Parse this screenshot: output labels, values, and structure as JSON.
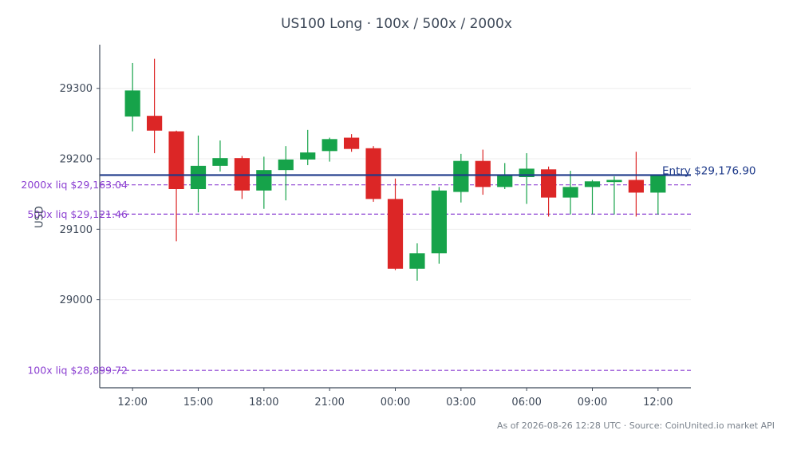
{
  "title": "US100 Long · 100x / 500x / 2000x",
  "footer": "As of 2026-08-26 12:28 UTC · Source: CoinUnited.io market API",
  "colors": {
    "up": "#16a34a",
    "down": "#dc2626",
    "entry": "#1e3a8a",
    "liq": "#8b3fd1",
    "axis": "#3f4a5a",
    "grid": "#eeeeee"
  },
  "chart_data": {
    "type": "candlestick",
    "title": "US100 Long · 100x / 500x / 2000x",
    "ylabel": "USD",
    "xlabel": "",
    "ylim": [
      28875,
      29362
    ],
    "xlim": [
      -1.5,
      25.5
    ],
    "grid": true,
    "y_ticks": [
      29000,
      29100,
      29200,
      29300
    ],
    "y_tick_labels": [
      "29000",
      "29100",
      "29200",
      "29300"
    ],
    "x_ticks": [
      0,
      3,
      6,
      9,
      12,
      15,
      18,
      21,
      24
    ],
    "x_tick_labels": [
      "12:00",
      "15:00",
      "18:00",
      "21:00",
      "00:00",
      "03:00",
      "06:00",
      "09:00",
      "12:00"
    ],
    "candles": [
      {
        "open": 29260,
        "close": 29297,
        "high": 29336,
        "low": 29239
      },
      {
        "open": 29261,
        "close": 29240,
        "high": 29342,
        "low": 29208
      },
      {
        "open": 29239,
        "close": 29157,
        "high": 29240,
        "low": 29083
      },
      {
        "open": 29157,
        "close": 29190,
        "high": 29233,
        "low": 29124
      },
      {
        "open": 29190,
        "close": 29201,
        "high": 29226,
        "low": 29182
      },
      {
        "open": 29201,
        "close": 29155,
        "high": 29204,
        "low": 29143
      },
      {
        "open": 29155,
        "close": 29184,
        "high": 29203,
        "low": 29129
      },
      {
        "open": 29184,
        "close": 29199,
        "high": 29218,
        "low": 29141
      },
      {
        "open": 29199,
        "close": 29209,
        "high": 29241,
        "low": 29191
      },
      {
        "open": 29211,
        "close": 29228,
        "high": 29230,
        "low": 29196
      },
      {
        "open": 29230,
        "close": 29214,
        "high": 29235,
        "low": 29210
      },
      {
        "open": 29215,
        "close": 29143,
        "high": 29218,
        "low": 29139
      },
      {
        "open": 29143,
        "close": 29044,
        "high": 29172,
        "low": 29042
      },
      {
        "open": 29044,
        "close": 29066,
        "high": 29080,
        "low": 29027
      },
      {
        "open": 29066,
        "close": 29155,
        "high": 29160,
        "low": 29051
      },
      {
        "open": 29153,
        "close": 29197,
        "high": 29207,
        "low": 29138
      },
      {
        "open": 29197,
        "close": 29160,
        "high": 29213,
        "low": 29149
      },
      {
        "open": 29160,
        "close": 29176,
        "high": 29194,
        "low": 29157
      },
      {
        "open": 29174,
        "close": 29186,
        "high": 29208,
        "low": 29136
      },
      {
        "open": 29185,
        "close": 29145,
        "high": 29189,
        "low": 29118
      },
      {
        "open": 29145,
        "close": 29160,
        "high": 29183,
        "low": 29121
      },
      {
        "open": 29160,
        "close": 29168,
        "high": 29170,
        "low": 29121
      },
      {
        "open": 29167,
        "close": 29170,
        "high": 29175,
        "low": 29121
      },
      {
        "open": 29170,
        "close": 29152,
        "high": 29210,
        "low": 29118
      },
      {
        "open": 29152,
        "close": 29176,
        "high": 29177,
        "low": 29121
      }
    ],
    "entry_line": {
      "value": 29176.9,
      "label": "Entry $29,176.90"
    },
    "liq_lines": [
      {
        "value": 29163.04,
        "label": "2000x liq $29,163.04"
      },
      {
        "value": 29121.46,
        "label": "500x liq $29,121.46"
      },
      {
        "value": 28899.72,
        "label": "100x liq $28,899.72"
      }
    ]
  }
}
